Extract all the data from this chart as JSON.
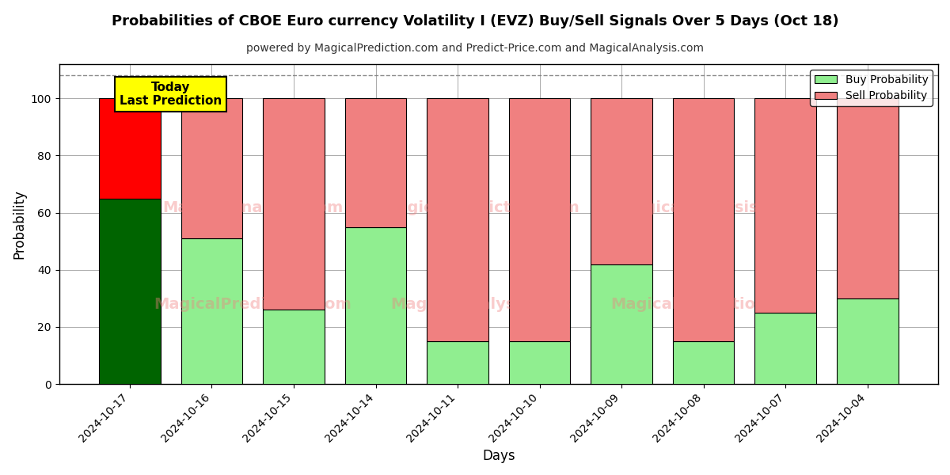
{
  "title": "Probabilities of CBOE Euro currency Volatility I (EVZ) Buy/Sell Signals Over 5 Days (Oct 18)",
  "subtitle": "powered by MagicalPrediction.com and Predict-Price.com and MagicalAnalysis.com",
  "xlabel": "Days",
  "ylabel": "Probability",
  "dates": [
    "2024-10-17",
    "2024-10-16",
    "2024-10-15",
    "2024-10-14",
    "2024-10-11",
    "2024-10-10",
    "2024-10-09",
    "2024-10-08",
    "2024-10-07",
    "2024-10-04"
  ],
  "buy_values": [
    65,
    51,
    26,
    55,
    15,
    15,
    42,
    15,
    25,
    30
  ],
  "sell_values": [
    35,
    49,
    74,
    45,
    85,
    85,
    58,
    85,
    75,
    70
  ],
  "today_index": 0,
  "today_buy_color": "#006400",
  "today_sell_color": "#FF0000",
  "buy_color": "#90EE90",
  "sell_color": "#F08080",
  "bar_edge_color": "#000000",
  "today_label_bg": "#FFFF00",
  "today_label_text": "Today\nLast Prediction",
  "legend_buy": "Buy Probability",
  "legend_sell": "Sell Probability",
  "ylim": [
    0,
    112
  ],
  "yticks": [
    0,
    20,
    40,
    60,
    80,
    100
  ],
  "dashed_line_y": 108,
  "bg_color": "#ffffff",
  "grid_color": "#aaaaaa",
  "bar_width": 0.75
}
